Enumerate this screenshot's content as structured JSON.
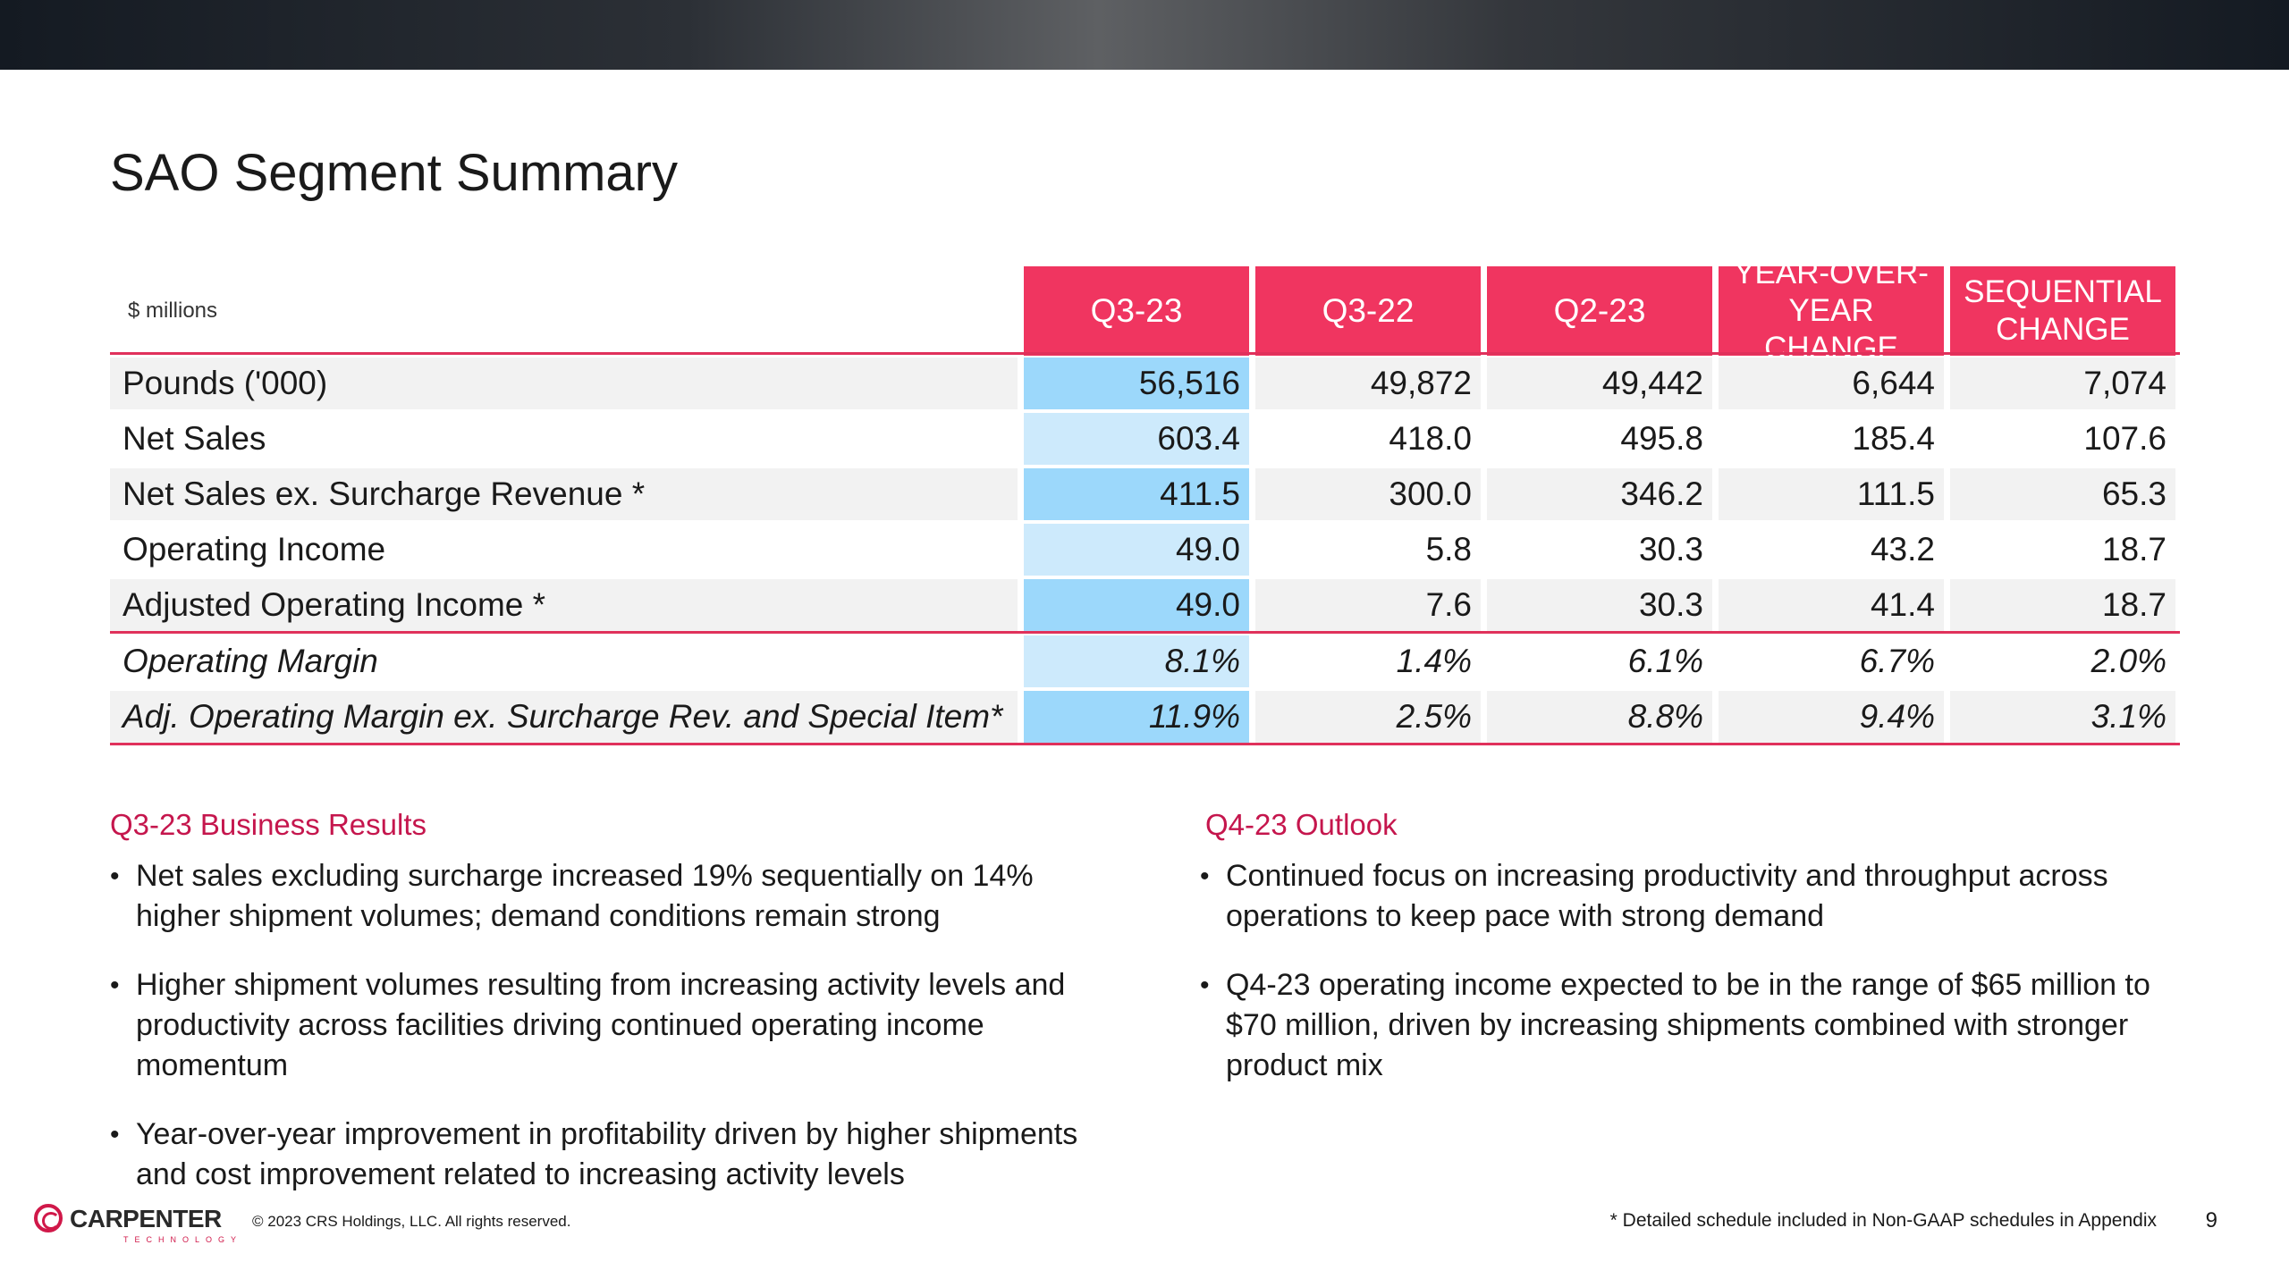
{
  "title": "SAO Segment Summary",
  "table": {
    "units": "$ millions",
    "columns": [
      "Q3-23",
      "Q3-22",
      "Q2-23",
      "YEAR-OVER-YEAR CHANGE",
      "SEQUENTIAL CHANGE"
    ],
    "rows": [
      {
        "label": "Pounds ('000)",
        "values": [
          "56,516",
          "49,872",
          "49,442",
          "6,644",
          "7,074"
        ]
      },
      {
        "label": "Net Sales",
        "values": [
          "603.4",
          "418.0",
          "495.8",
          "185.4",
          "107.6"
        ]
      },
      {
        "label": "Net Sales ex. Surcharge Revenue *",
        "values": [
          "411.5",
          "300.0",
          "346.2",
          "111.5",
          "65.3"
        ]
      },
      {
        "label": "Operating Income",
        "values": [
          "49.0",
          "5.8",
          "30.3",
          "43.2",
          "18.7"
        ]
      },
      {
        "label": "Adjusted Operating Income *",
        "values": [
          "49.0",
          "7.6",
          "30.3",
          "41.4",
          "18.7"
        ]
      },
      {
        "label": "Operating Margin",
        "values": [
          "8.1%",
          "1.4%",
          "6.1%",
          "6.7%",
          "2.0%"
        ]
      },
      {
        "label": "Adj. Operating Margin ex. Surcharge Rev. and Special Item*",
        "values": [
          "11.9%",
          "2.5%",
          "8.8%",
          "9.4%",
          "3.1%"
        ]
      }
    ]
  },
  "results": {
    "heading": "Q3-23 Business Results",
    "bullets": [
      "Net sales excluding surcharge increased 19% sequentially on 14% higher shipment volumes; demand conditions remain strong",
      "Higher shipment volumes resulting from increasing activity levels and productivity across facilities driving continued operating income momentum",
      "Year-over-year improvement in profitability driven by higher shipments and cost improvement related to increasing activity levels"
    ]
  },
  "outlook": {
    "heading": "Q4-23 Outlook",
    "bullets": [
      "Continued focus on increasing productivity and throughput across operations to keep pace with strong demand",
      "Q4-23 operating income expected to be in the range of $65 million to $70 million, driven by increasing shipments combined with stronger product mix"
    ]
  },
  "footer": {
    "logo_name": "CARPENTER",
    "logo_sub": "TECHNOLOGY",
    "copyright": "© 2023 CRS Holdings, LLC. All rights reserved.",
    "footnote": "* Detailed schedule included in Non-GAAP schedules in Appendix",
    "page_number": "9"
  },
  "colors": {
    "accent": "#f03560",
    "heading": "#c5164d",
    "highlight_light": "#cdeafc",
    "highlight_dark": "#9cd8fb"
  }
}
